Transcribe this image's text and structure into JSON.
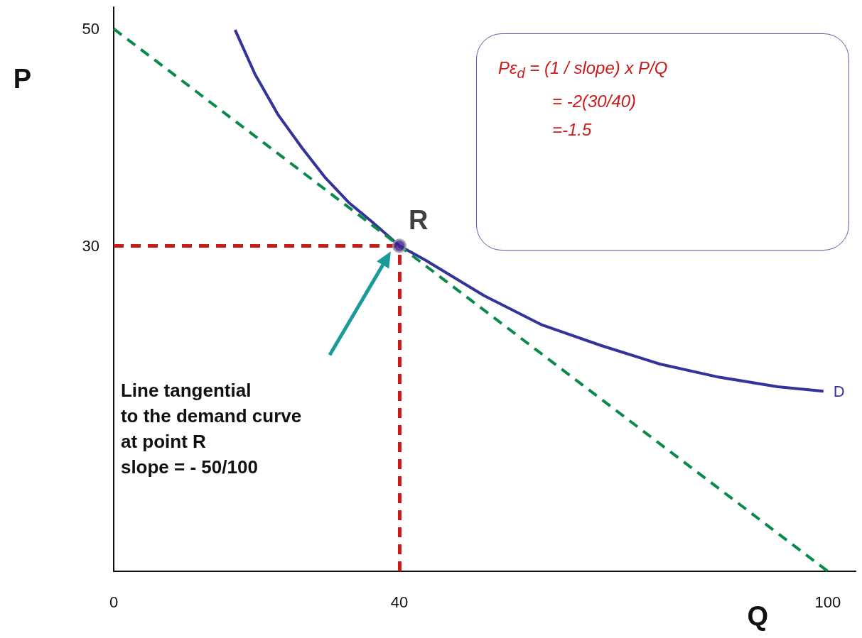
{
  "chart_data": {
    "type": "line",
    "xlabel": "Q",
    "ylabel": "P",
    "xlim": [
      0,
      104
    ],
    "ylim": [
      0,
      52
    ],
    "xticks": [
      0,
      40,
      100
    ],
    "yticks": [
      30,
      50
    ],
    "grid": false,
    "legend": false,
    "marker": "none",
    "series": [
      {
        "name": "D",
        "color": "#33339a",
        "x": [
          17,
          19.8,
          23,
          26.4,
          29.6,
          32.9,
          36.2,
          40,
          43.6,
          51.9,
          60,
          68.3,
          76.5,
          84.7,
          93,
          99.4
        ],
        "values": [
          49.9,
          45.8,
          42.1,
          39,
          36.3,
          34,
          32.2,
          30,
          28.7,
          25.4,
          22.7,
          20.8,
          19.1,
          17.9,
          17,
          16.6
        ]
      },
      {
        "color": "#0a8a4a",
        "line_style": "dashed",
        "x": [
          0,
          100
        ],
        "values": [
          50,
          0
        ]
      },
      {
        "name": "R",
        "type": "scatter",
        "marker": "circle",
        "color": "#3a1a9a",
        "x": [
          40
        ],
        "values": [
          30
        ]
      }
    ],
    "ref_lines": [
      {
        "axis": "x",
        "value": 40,
        "color": "#cc1a1a",
        "line_style": "dashed"
      },
      {
        "axis": "y",
        "value": 30,
        "color": "#cc1a1a",
        "line_style": "dashed"
      }
    ],
    "annotations": [
      "Pε$_{d}$ =  (1 / slope) x P/Q",
      "= -2(30/40)",
      "=-1.5",
      "Line tangential\nto the demand curve\nat point R\nslope = - 50/100"
    ]
  }
}
